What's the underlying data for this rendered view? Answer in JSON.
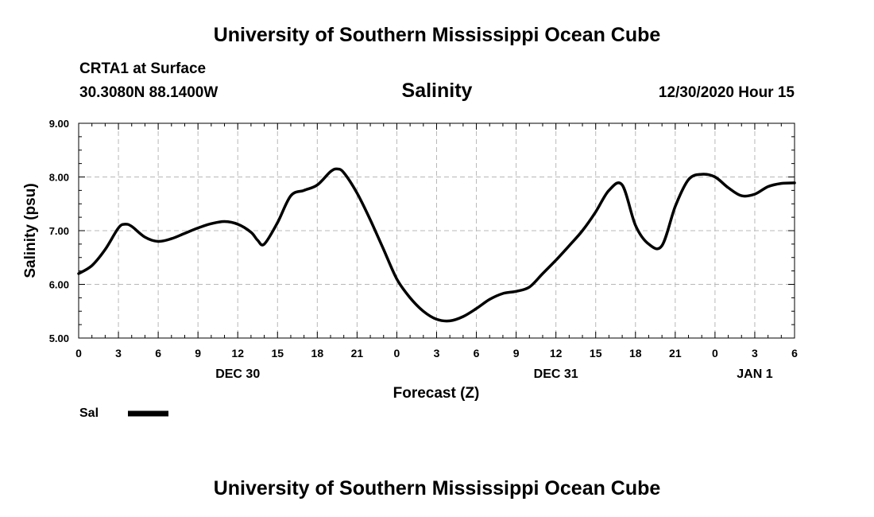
{
  "header": {
    "organization": "University of Southern Mississippi Ocean Cube",
    "station": "CRTA1 at Surface",
    "coordinates": "30.3080N 88.1400W",
    "timestamp": "12/30/2020 Hour 15"
  },
  "footer": {
    "organization": "University of Southern Mississippi Ocean Cube"
  },
  "chart_data": {
    "type": "line",
    "title": "Salinity",
    "xlabel": "Forecast (Z)",
    "ylabel": "Salinity (psu)",
    "ylim": [
      5.0,
      9.0
    ],
    "xlim": [
      0,
      54
    ],
    "grid": true,
    "y_ticks": [
      "5.00",
      "6.00",
      "7.00",
      "8.00",
      "9.00"
    ],
    "x_ticks": [
      "0",
      "3",
      "6",
      "9",
      "12",
      "15",
      "18",
      "21",
      "0",
      "3",
      "6",
      "9",
      "12",
      "15",
      "18",
      "21",
      "0",
      "3",
      "6"
    ],
    "date_labels": [
      {
        "label": "DEC 30",
        "hour": 12
      },
      {
        "label": "DEC 31",
        "hour": 36
      },
      {
        "label": "JAN 1",
        "hour": 51
      }
    ],
    "legend": {
      "position": "bottom-left",
      "entries": [
        "Sal"
      ]
    },
    "series": [
      {
        "name": "Sal",
        "color": "#000000",
        "x": [
          0,
          1,
          2,
          3,
          3.5,
          4,
          5,
          6,
          7,
          8,
          9,
          10,
          11,
          12,
          13,
          13.5,
          14,
          15,
          16,
          17,
          18,
          19,
          19.5,
          20,
          21,
          22,
          23,
          24,
          25,
          26,
          27,
          28,
          29,
          30,
          31,
          32,
          33,
          34,
          35,
          36,
          37,
          38,
          39,
          40,
          41,
          42,
          43,
          44,
          45,
          46,
          47,
          48,
          49,
          50,
          51,
          52,
          53,
          54
        ],
        "values": [
          6.2,
          6.35,
          6.65,
          7.05,
          7.12,
          7.08,
          6.88,
          6.8,
          6.85,
          6.95,
          7.05,
          7.13,
          7.17,
          7.12,
          6.97,
          6.82,
          6.75,
          7.15,
          7.65,
          7.75,
          7.85,
          8.1,
          8.15,
          8.08,
          7.7,
          7.2,
          6.65,
          6.1,
          5.75,
          5.5,
          5.35,
          5.32,
          5.4,
          5.55,
          5.72,
          5.83,
          5.87,
          5.95,
          6.2,
          6.45,
          6.72,
          7.0,
          7.35,
          7.75,
          7.85,
          7.1,
          6.75,
          6.72,
          7.45,
          7.95,
          8.05,
          8.0,
          7.8,
          7.65,
          7.68,
          7.82,
          7.88,
          7.89
        ]
      }
    ]
  }
}
